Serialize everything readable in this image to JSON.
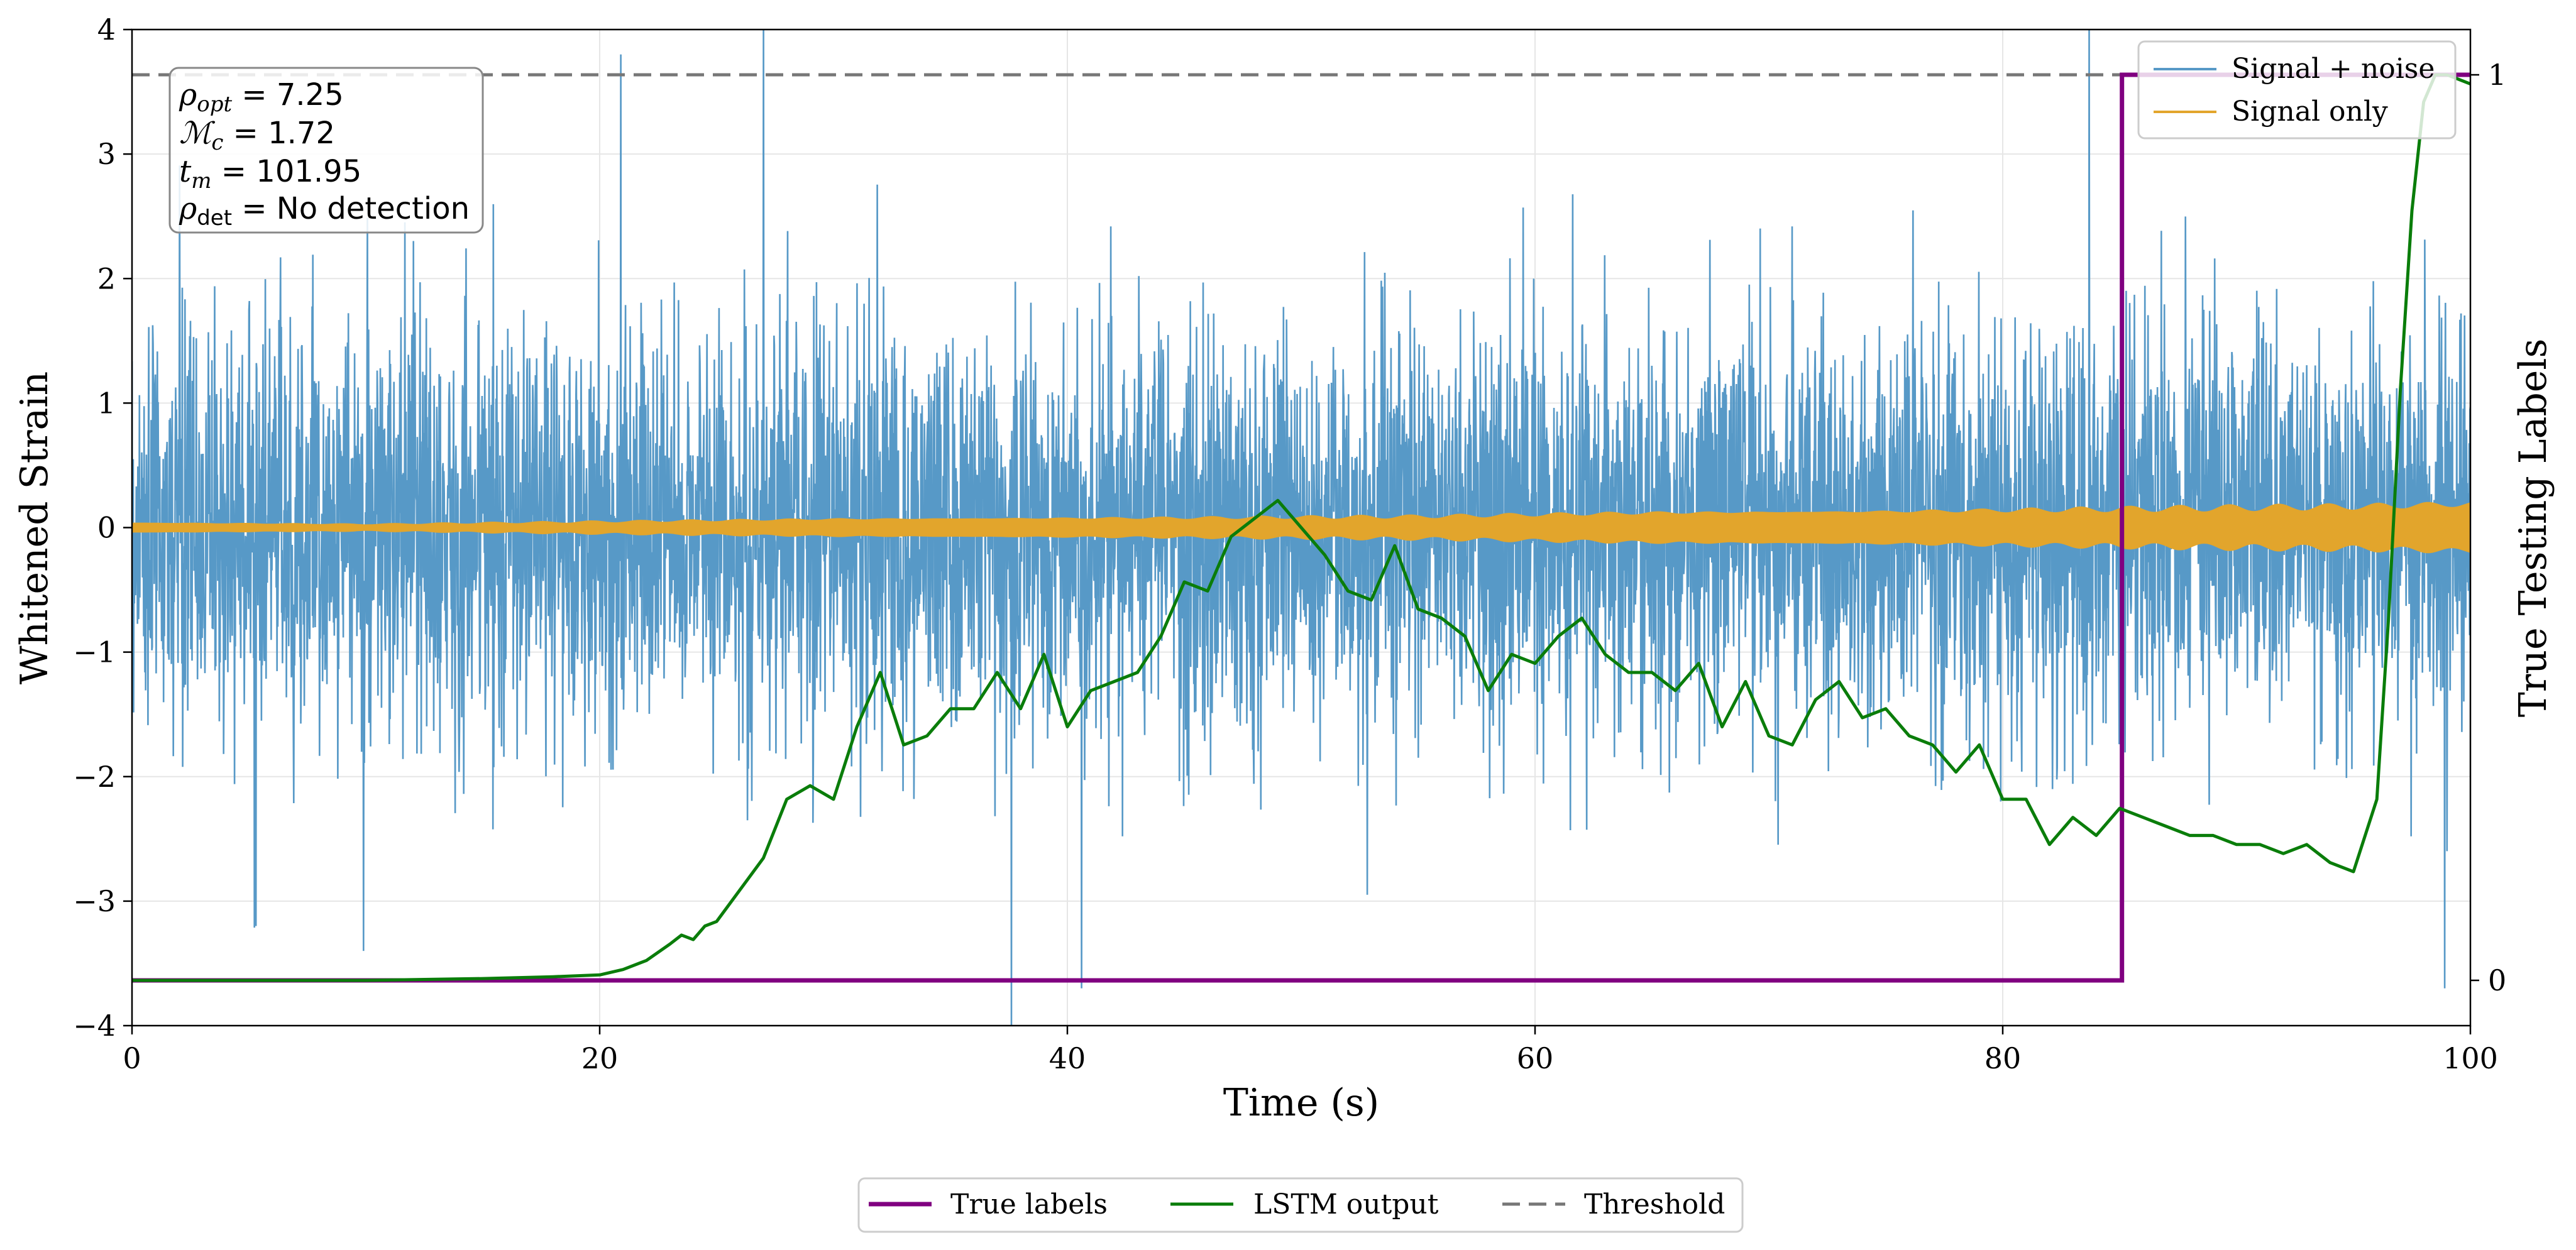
{
  "chart_data": {
    "type": "line",
    "xlabel": "Time (s)",
    "ylabel_left": "Whitened Strain",
    "ylabel_right": "True Testing Labels",
    "xlim": [
      0,
      100
    ],
    "ylim_left": [
      -4,
      4
    ],
    "ylim_right": [
      -0.05,
      1.05
    ],
    "x_ticks": [
      0,
      20,
      40,
      60,
      80,
      100
    ],
    "x_tick_labels": [
      "0",
      "20",
      "40",
      "60",
      "80",
      "100"
    ],
    "y_left_ticks": [
      -4,
      -3,
      -2,
      -1,
      0,
      1,
      2,
      3,
      4
    ],
    "y_left_tick_labels": [
      "−4",
      "−3",
      "−2",
      "−1",
      "0",
      "1",
      "2",
      "3",
      "4"
    ],
    "y_right_ticks": [
      0,
      1
    ],
    "y_right_tick_labels": [
      "0",
      "1"
    ],
    "grid": true,
    "colors": {
      "signal_noise": "#5799c7",
      "signal_only": "#e2a52c",
      "true_labels": "#800080",
      "lstm": "#0a7d0a",
      "threshold": "#777777"
    },
    "series": [
      {
        "name": "Signal + noise",
        "axis": "left",
        "description_values": "dense noise, typical range about ±2, peaks to ±3.8",
        "spikes": [
          {
            "x": 27.0,
            "y": 4.0
          },
          {
            "x": 37.6,
            "y": 4.0
          },
          {
            "x": 37.6,
            "y": -4.0
          },
          {
            "x": 83.7,
            "y": 4.0
          },
          {
            "x": 40.6,
            "y": -3.7
          },
          {
            "x": 98.9,
            "y": -3.7
          },
          {
            "x": 20.9,
            "y": 3.8
          },
          {
            "x": 9.9,
            "y": -3.4
          },
          {
            "x": 5.3,
            "y": -3.2
          }
        ]
      },
      {
        "name": "Signal only",
        "axis": "left",
        "envelope": [
          {
            "x": 0,
            "a": 0.04
          },
          {
            "x": 10,
            "a": 0.03
          },
          {
            "x": 20,
            "a": 0.05
          },
          {
            "x": 30,
            "a": 0.07
          },
          {
            "x": 45,
            "a": 0.08
          },
          {
            "x": 55,
            "a": 0.09
          },
          {
            "x": 65,
            "a": 0.12
          },
          {
            "x": 75,
            "a": 0.13
          },
          {
            "x": 85,
            "a": 0.15
          },
          {
            "x": 95,
            "a": 0.17
          },
          {
            "x": 100,
            "a": 0.19
          }
        ]
      },
      {
        "name": "True labels",
        "axis": "right",
        "x": [
          0,
          85.1,
          85.1,
          100
        ],
        "y": [
          0,
          0,
          1,
          1
        ]
      },
      {
        "name": "LSTM output",
        "axis": "right",
        "x": [
          0,
          10,
          15,
          18,
          20,
          21,
          22,
          23,
          23.5,
          24,
          24.5,
          25,
          26,
          27,
          28,
          29,
          30,
          31,
          32,
          33,
          34,
          35,
          36,
          37,
          38,
          39,
          40,
          41,
          42,
          43,
          44,
          45,
          46,
          47,
          48,
          49,
          50,
          51,
          52,
          53,
          54,
          55,
          56,
          57,
          58,
          59,
          60,
          61,
          62,
          63,
          64,
          65,
          66,
          67,
          68,
          69,
          70,
          71,
          72,
          73,
          74,
          75,
          76,
          77,
          78,
          79,
          80,
          81,
          82,
          83,
          84,
          85,
          86,
          87,
          88,
          89,
          90,
          91,
          92,
          93,
          94,
          95,
          96,
          96.5,
          97,
          97.5,
          98,
          98.5,
          99,
          100
        ],
        "y": [
          0.0,
          0.0,
          0.002,
          0.004,
          0.006,
          0.012,
          0.022,
          0.04,
          0.05,
          0.045,
          0.06,
          0.065,
          0.1,
          0.135,
          0.2,
          0.215,
          0.2,
          0.28,
          0.34,
          0.26,
          0.27,
          0.3,
          0.3,
          0.34,
          0.3,
          0.36,
          0.28,
          0.32,
          0.33,
          0.34,
          0.38,
          0.44,
          0.43,
          0.49,
          0.51,
          0.53,
          0.5,
          0.47,
          0.43,
          0.42,
          0.48,
          0.41,
          0.4,
          0.38,
          0.32,
          0.36,
          0.35,
          0.38,
          0.4,
          0.36,
          0.34,
          0.34,
          0.32,
          0.35,
          0.28,
          0.33,
          0.27,
          0.26,
          0.31,
          0.33,
          0.29,
          0.3,
          0.27,
          0.26,
          0.23,
          0.26,
          0.2,
          0.2,
          0.15,
          0.18,
          0.16,
          0.19,
          0.18,
          0.17,
          0.16,
          0.16,
          0.15,
          0.15,
          0.14,
          0.15,
          0.13,
          0.12,
          0.2,
          0.4,
          0.65,
          0.85,
          0.97,
          1.0,
          1.0,
          0.99
        ]
      },
      {
        "name": "Threshold",
        "axis": "right",
        "y": 1.0
      }
    ],
    "legend_top_right": [
      "Signal + noise",
      "Signal only"
    ],
    "legend_bottom": [
      "True labels",
      "LSTM output",
      "Threshold"
    ],
    "annotation": {
      "rho_opt": "7.25",
      "mc": "1.72",
      "tm": "101.95",
      "rho_det": "No detection"
    }
  }
}
